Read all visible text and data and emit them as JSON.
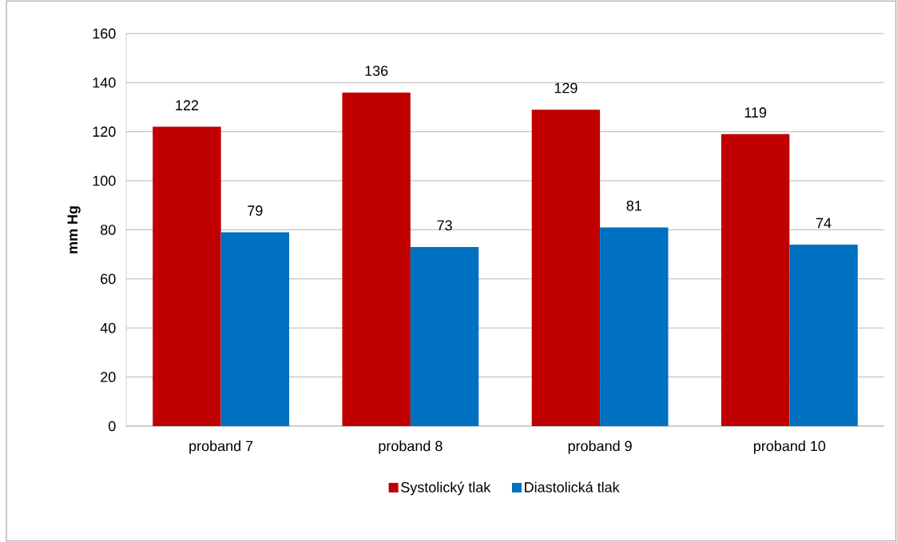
{
  "chart_data": {
    "type": "bar",
    "ylabel": "mm Hg",
    "categories": [
      "proband 7",
      "proband 8",
      "proband 9",
      "proband 10"
    ],
    "series": [
      {
        "name": "Systolický tlak",
        "color": "#c00000",
        "values": [
          122,
          136,
          129,
          119
        ]
      },
      {
        "name": "Diastolická tlak",
        "color": "#0070c0",
        "values": [
          79,
          73,
          81,
          74
        ]
      }
    ],
    "ylim": [
      0,
      160
    ],
    "yticks": [
      0,
      20,
      40,
      60,
      80,
      100,
      120,
      140,
      160
    ],
    "grid": "y",
    "legend": "bottom",
    "data_labels": true
  }
}
